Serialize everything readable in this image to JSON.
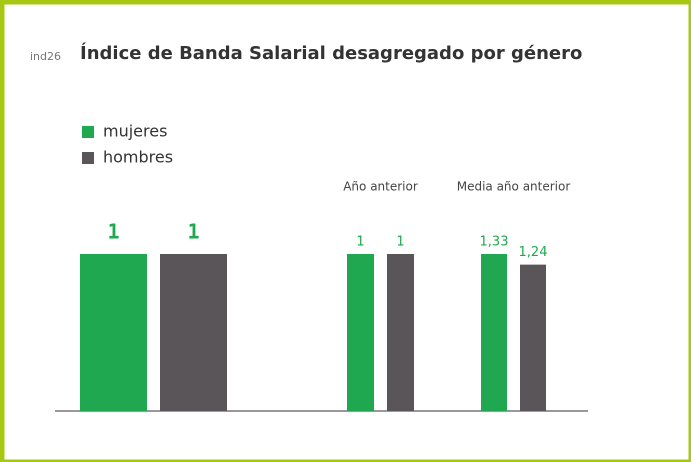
{
  "chart_data": {
    "type": "bar",
    "code": "ind26",
    "title": "Índice de Banda Salarial desagregado por género",
    "categories": [
      null,
      "Año anterior",
      "Media año anterior"
    ],
    "series": [
      {
        "name": "mujeres",
        "color": "#1fa84f",
        "values": [
          1,
          1,
          1.33
        ],
        "value_labels": [
          "1",
          "1",
          "1,33"
        ]
      },
      {
        "name": "hombres",
        "color": "#5a5558",
        "values": [
          1,
          1,
          1.24
        ],
        "value_labels": [
          "1",
          "1",
          "1,24"
        ]
      }
    ],
    "legend": "top-left"
  }
}
